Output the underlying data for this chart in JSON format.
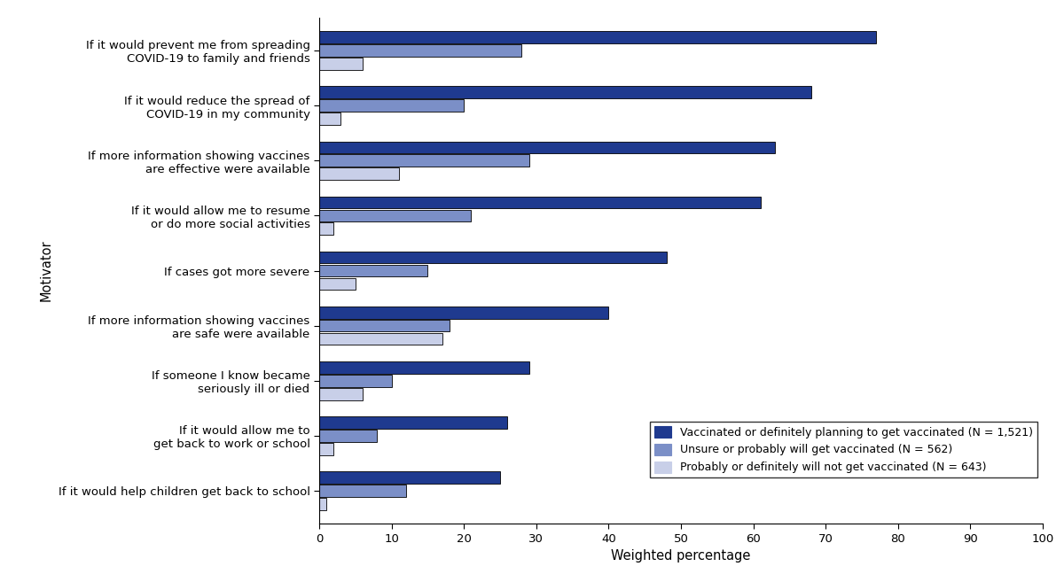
{
  "categories": [
    "If it would help children get back to school",
    "If it would allow me to\nget back to work or school",
    "If someone I know became\nseriously ill or died",
    "If more information showing vaccines\nare safe were available",
    "If cases got more severe",
    "If it would allow me to resume\nor do more social activities",
    "If more information showing vaccines\nare effective were available",
    "If it would reduce the spread of\nCOVID-19 in my community",
    "If it would prevent me from spreading\nCOVID-19 to family and friends"
  ],
  "vaccinated": [
    25,
    26,
    29,
    40,
    48,
    61,
    63,
    68,
    77
  ],
  "unsure": [
    12,
    8,
    10,
    18,
    15,
    21,
    29,
    20,
    28
  ],
  "probably_not": [
    1,
    2,
    6,
    17,
    5,
    2,
    11,
    3,
    6
  ],
  "color_vaccinated": "#1f3a8f",
  "color_unsure": "#7b8fc7",
  "color_probably_not": "#c8cfe8",
  "xlabel": "Weighted percentage",
  "ylabel": "Motivator",
  "xlim": [
    0,
    100
  ],
  "xticks": [
    0,
    10,
    20,
    30,
    40,
    50,
    60,
    70,
    80,
    90,
    100
  ],
  "legend_vaccinated": "Vaccinated or definitely planning to get vaccinated (N = 1,521)",
  "legend_unsure": "Unsure or probably will get vaccinated (N = 562)",
  "legend_probably_not": "Probably or definitely will not get vaccinated (N = 643)",
  "bar_height": 0.22,
  "bar_spacing": 0.24
}
